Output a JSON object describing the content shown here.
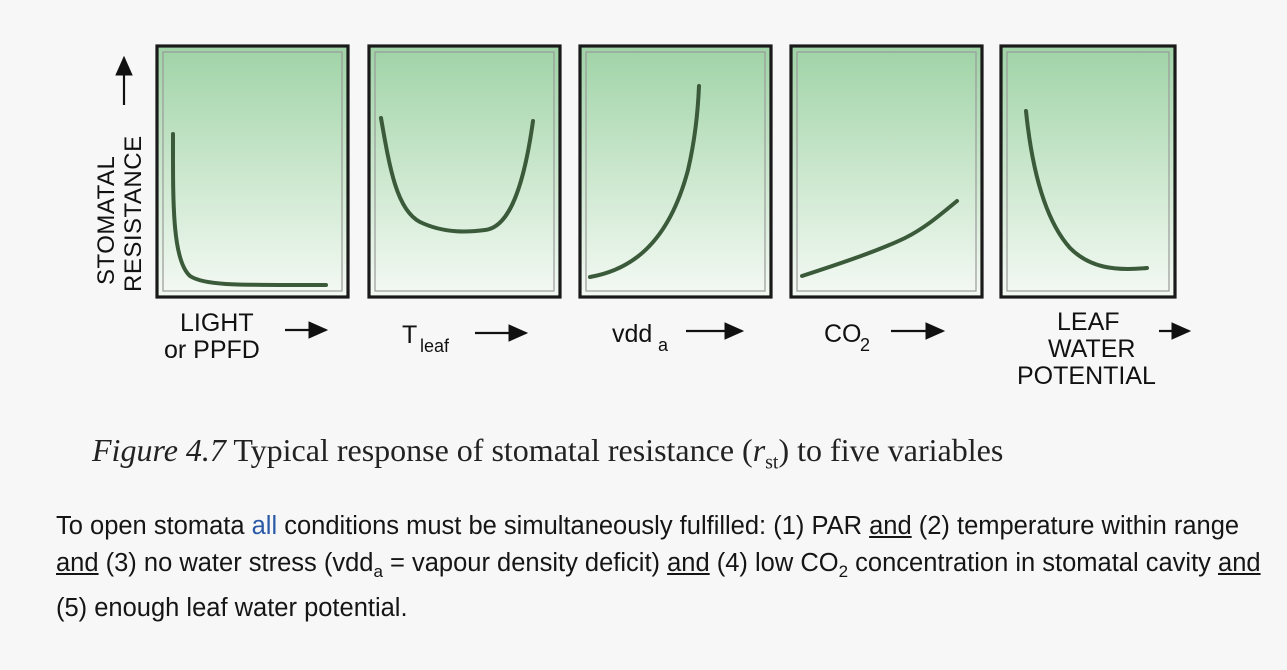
{
  "figure": {
    "y_axis_label_line1": "STOMATAL",
    "y_axis_label_line2": "RESISTANCE",
    "colors": {
      "panel_top": "#9fd3a6",
      "panel_bottom": "#f4f9f4",
      "curve": "#3a5a3a",
      "frame": "#1a1a1a"
    },
    "panels": [
      {
        "name": "light",
        "label_line1": "LIGHT",
        "label_line2": "or  PPFD",
        "curve_shape": "sharp decrease then flat"
      },
      {
        "name": "tleaf",
        "label_main": "T",
        "label_sub": "leaf",
        "curve_shape": "U-shaped"
      },
      {
        "name": "vdd",
        "label_main": "vdd",
        "label_sub": "a",
        "curve_shape": "exponential increase"
      },
      {
        "name": "co2",
        "label_main": "CO",
        "label_sub": "2",
        "curve_shape": "gentle linear increase"
      },
      {
        "name": "leaf-water-potential",
        "label_line1": "LEAF",
        "label_line2": "WATER",
        "label_line3": "POTENTIAL",
        "curve_shape": "decreasing decay"
      }
    ]
  },
  "caption": {
    "figure_number": "Figure 4.7",
    "text_before": " Typical response of stomatal resistance (",
    "symbol": "r",
    "symbol_sub": "st",
    "text_after": ") to five variables"
  },
  "paragraph": {
    "p1": "To open stomata ",
    "p2_highlight": "all",
    "p3": " conditions must be simultaneously fulfilled: (1) PAR ",
    "and1": "and",
    "p4": " (2) temperature within range ",
    "and2": "and",
    "p5": " (3) no water stress (vdd",
    "p5_sub": "a",
    "p6": " = vapour density deficit) ",
    "and3": "and",
    "p7": " (4) low CO",
    "p7_sub": "2",
    "p8": " concentration in stomatal cavity ",
    "and4": "and",
    "p9": " (5) enough leaf water potential."
  }
}
